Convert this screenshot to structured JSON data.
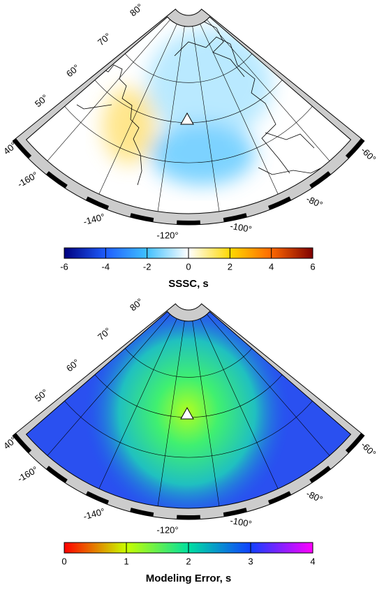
{
  "maps": [
    {
      "lat_labels": [
        "80°",
        "70°",
        "60°",
        "50°",
        "40°"
      ],
      "lon_labels": [
        "-160°",
        "-140°",
        "-120°",
        "-100°",
        "-80°",
        "-60°"
      ],
      "colorbar": {
        "ticks": [
          -6,
          -4,
          -2,
          0,
          2,
          4,
          6
        ],
        "title": "SSSC, s"
      }
    },
    {
      "lat_labels": [
        "80°",
        "70°",
        "60°",
        "50°",
        "40°"
      ],
      "lon_labels": [
        "-160°",
        "-140°",
        "-120°",
        "-100°",
        "-80°",
        "-60°"
      ],
      "colorbar": {
        "ticks": [
          0,
          1,
          2,
          3,
          4
        ],
        "title": "Modeling Error, s"
      }
    }
  ]
}
